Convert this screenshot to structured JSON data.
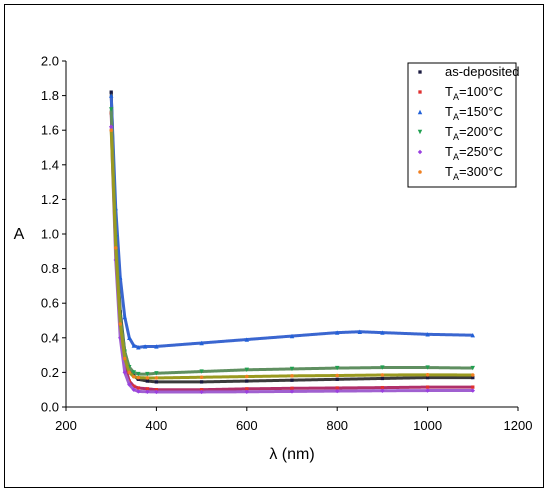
{
  "chart_data": {
    "type": "scatter",
    "xlabel": "λ (nm)",
    "ylabel": "A",
    "xlim": [
      200,
      1200
    ],
    "ylim": [
      0.0,
      2.0
    ],
    "x_ticks": [
      "200",
      "400",
      "600",
      "800",
      "1000",
      "1200"
    ],
    "y_ticks": [
      "0.0",
      "0.2",
      "0.4",
      "0.6",
      "0.8",
      "1.0",
      "1.2",
      "1.4",
      "1.6",
      "1.8",
      "2.0"
    ],
    "grid": false,
    "legend_position": "top-right",
    "series": [
      {
        "name": "as-deposited",
        "legend_text": "as-deposited",
        "legend_sub": "",
        "legend_rest": "",
        "marker": "square",
        "color": "#1a1a40",
        "line_color": "#3b3b3b",
        "points": [
          [
            300,
            1.82
          ],
          [
            310,
            1.0
          ],
          [
            320,
            0.55
          ],
          [
            330,
            0.32
          ],
          [
            340,
            0.22
          ],
          [
            350,
            0.18
          ],
          [
            360,
            0.16
          ],
          [
            380,
            0.15
          ],
          [
            400,
            0.145
          ],
          [
            500,
            0.145
          ],
          [
            600,
            0.15
          ],
          [
            700,
            0.155
          ],
          [
            800,
            0.16
          ],
          [
            900,
            0.165
          ],
          [
            1000,
            0.17
          ],
          [
            1100,
            0.17
          ]
        ]
      },
      {
        "name": "T_A=100°C",
        "legend_text": "T",
        "legend_sub": "A",
        "legend_rest": "=100°C",
        "marker": "square",
        "color": "#e03030",
        "line_color": "#b0306a",
        "points": [
          [
            300,
            1.7
          ],
          [
            310,
            0.9
          ],
          [
            320,
            0.45
          ],
          [
            330,
            0.24
          ],
          [
            340,
            0.15
          ],
          [
            350,
            0.12
          ],
          [
            360,
            0.11
          ],
          [
            380,
            0.105
          ],
          [
            400,
            0.1
          ],
          [
            500,
            0.1
          ],
          [
            600,
            0.105
          ],
          [
            700,
            0.108
          ],
          [
            800,
            0.11
          ],
          [
            900,
            0.112
          ],
          [
            1000,
            0.115
          ],
          [
            1100,
            0.115
          ]
        ]
      },
      {
        "name": "T_A=150°C",
        "legend_text": "T",
        "legend_sub": "A",
        "legend_rest": "=150°C",
        "marker": "triangle",
        "color": "#2060d8",
        "line_color": "#3a66d0",
        "points": [
          [
            300,
            1.8
          ],
          [
            310,
            1.15
          ],
          [
            320,
            0.75
          ],
          [
            330,
            0.52
          ],
          [
            340,
            0.4
          ],
          [
            350,
            0.355
          ],
          [
            360,
            0.345
          ],
          [
            375,
            0.35
          ],
          [
            400,
            0.35
          ],
          [
            500,
            0.37
          ],
          [
            600,
            0.39
          ],
          [
            700,
            0.41
          ],
          [
            800,
            0.43
          ],
          [
            850,
            0.435
          ],
          [
            900,
            0.43
          ],
          [
            1000,
            0.42
          ],
          [
            1100,
            0.415
          ]
        ]
      },
      {
        "name": "T_A=200°C",
        "legend_text": "T",
        "legend_sub": "A",
        "legend_rest": "=200°C",
        "marker": "triangle-down",
        "color": "#20a050",
        "line_color": "#5f8f60",
        "points": [
          [
            300,
            1.72
          ],
          [
            310,
            0.98
          ],
          [
            320,
            0.52
          ],
          [
            330,
            0.32
          ],
          [
            340,
            0.23
          ],
          [
            350,
            0.2
          ],
          [
            360,
            0.19
          ],
          [
            380,
            0.19
          ],
          [
            400,
            0.195
          ],
          [
            500,
            0.205
          ],
          [
            600,
            0.215
          ],
          [
            700,
            0.22
          ],
          [
            800,
            0.225
          ],
          [
            900,
            0.228
          ],
          [
            1000,
            0.228
          ],
          [
            1100,
            0.225
          ]
        ]
      },
      {
        "name": "T_A=250°C",
        "legend_text": "T",
        "legend_sub": "A",
        "legend_rest": "=250°C",
        "marker": "diamond",
        "color": "#9a40e0",
        "line_color": "#a060d0",
        "points": [
          [
            300,
            1.62
          ],
          [
            310,
            0.85
          ],
          [
            320,
            0.4
          ],
          [
            330,
            0.2
          ],
          [
            340,
            0.13
          ],
          [
            350,
            0.1
          ],
          [
            360,
            0.09
          ],
          [
            380,
            0.088
          ],
          [
            400,
            0.087
          ],
          [
            500,
            0.087
          ],
          [
            600,
            0.088
          ],
          [
            700,
            0.09
          ],
          [
            800,
            0.092
          ],
          [
            900,
            0.094
          ],
          [
            1000,
            0.095
          ],
          [
            1100,
            0.095
          ]
        ]
      },
      {
        "name": "T_A=300°C",
        "legend_text": "T",
        "legend_sub": "A",
        "legend_rest": "=300°C",
        "marker": "circle",
        "color": "#f08020",
        "line_color": "#9a9a20",
        "points": [
          [
            300,
            1.6
          ],
          [
            310,
            0.92
          ],
          [
            320,
            0.48
          ],
          [
            330,
            0.28
          ],
          [
            340,
            0.2
          ],
          [
            350,
            0.175
          ],
          [
            360,
            0.17
          ],
          [
            380,
            0.168
          ],
          [
            400,
            0.168
          ],
          [
            500,
            0.172
          ],
          [
            600,
            0.176
          ],
          [
            700,
            0.18
          ],
          [
            800,
            0.182
          ],
          [
            900,
            0.185
          ],
          [
            1000,
            0.186
          ],
          [
            1100,
            0.185
          ]
        ]
      }
    ]
  }
}
